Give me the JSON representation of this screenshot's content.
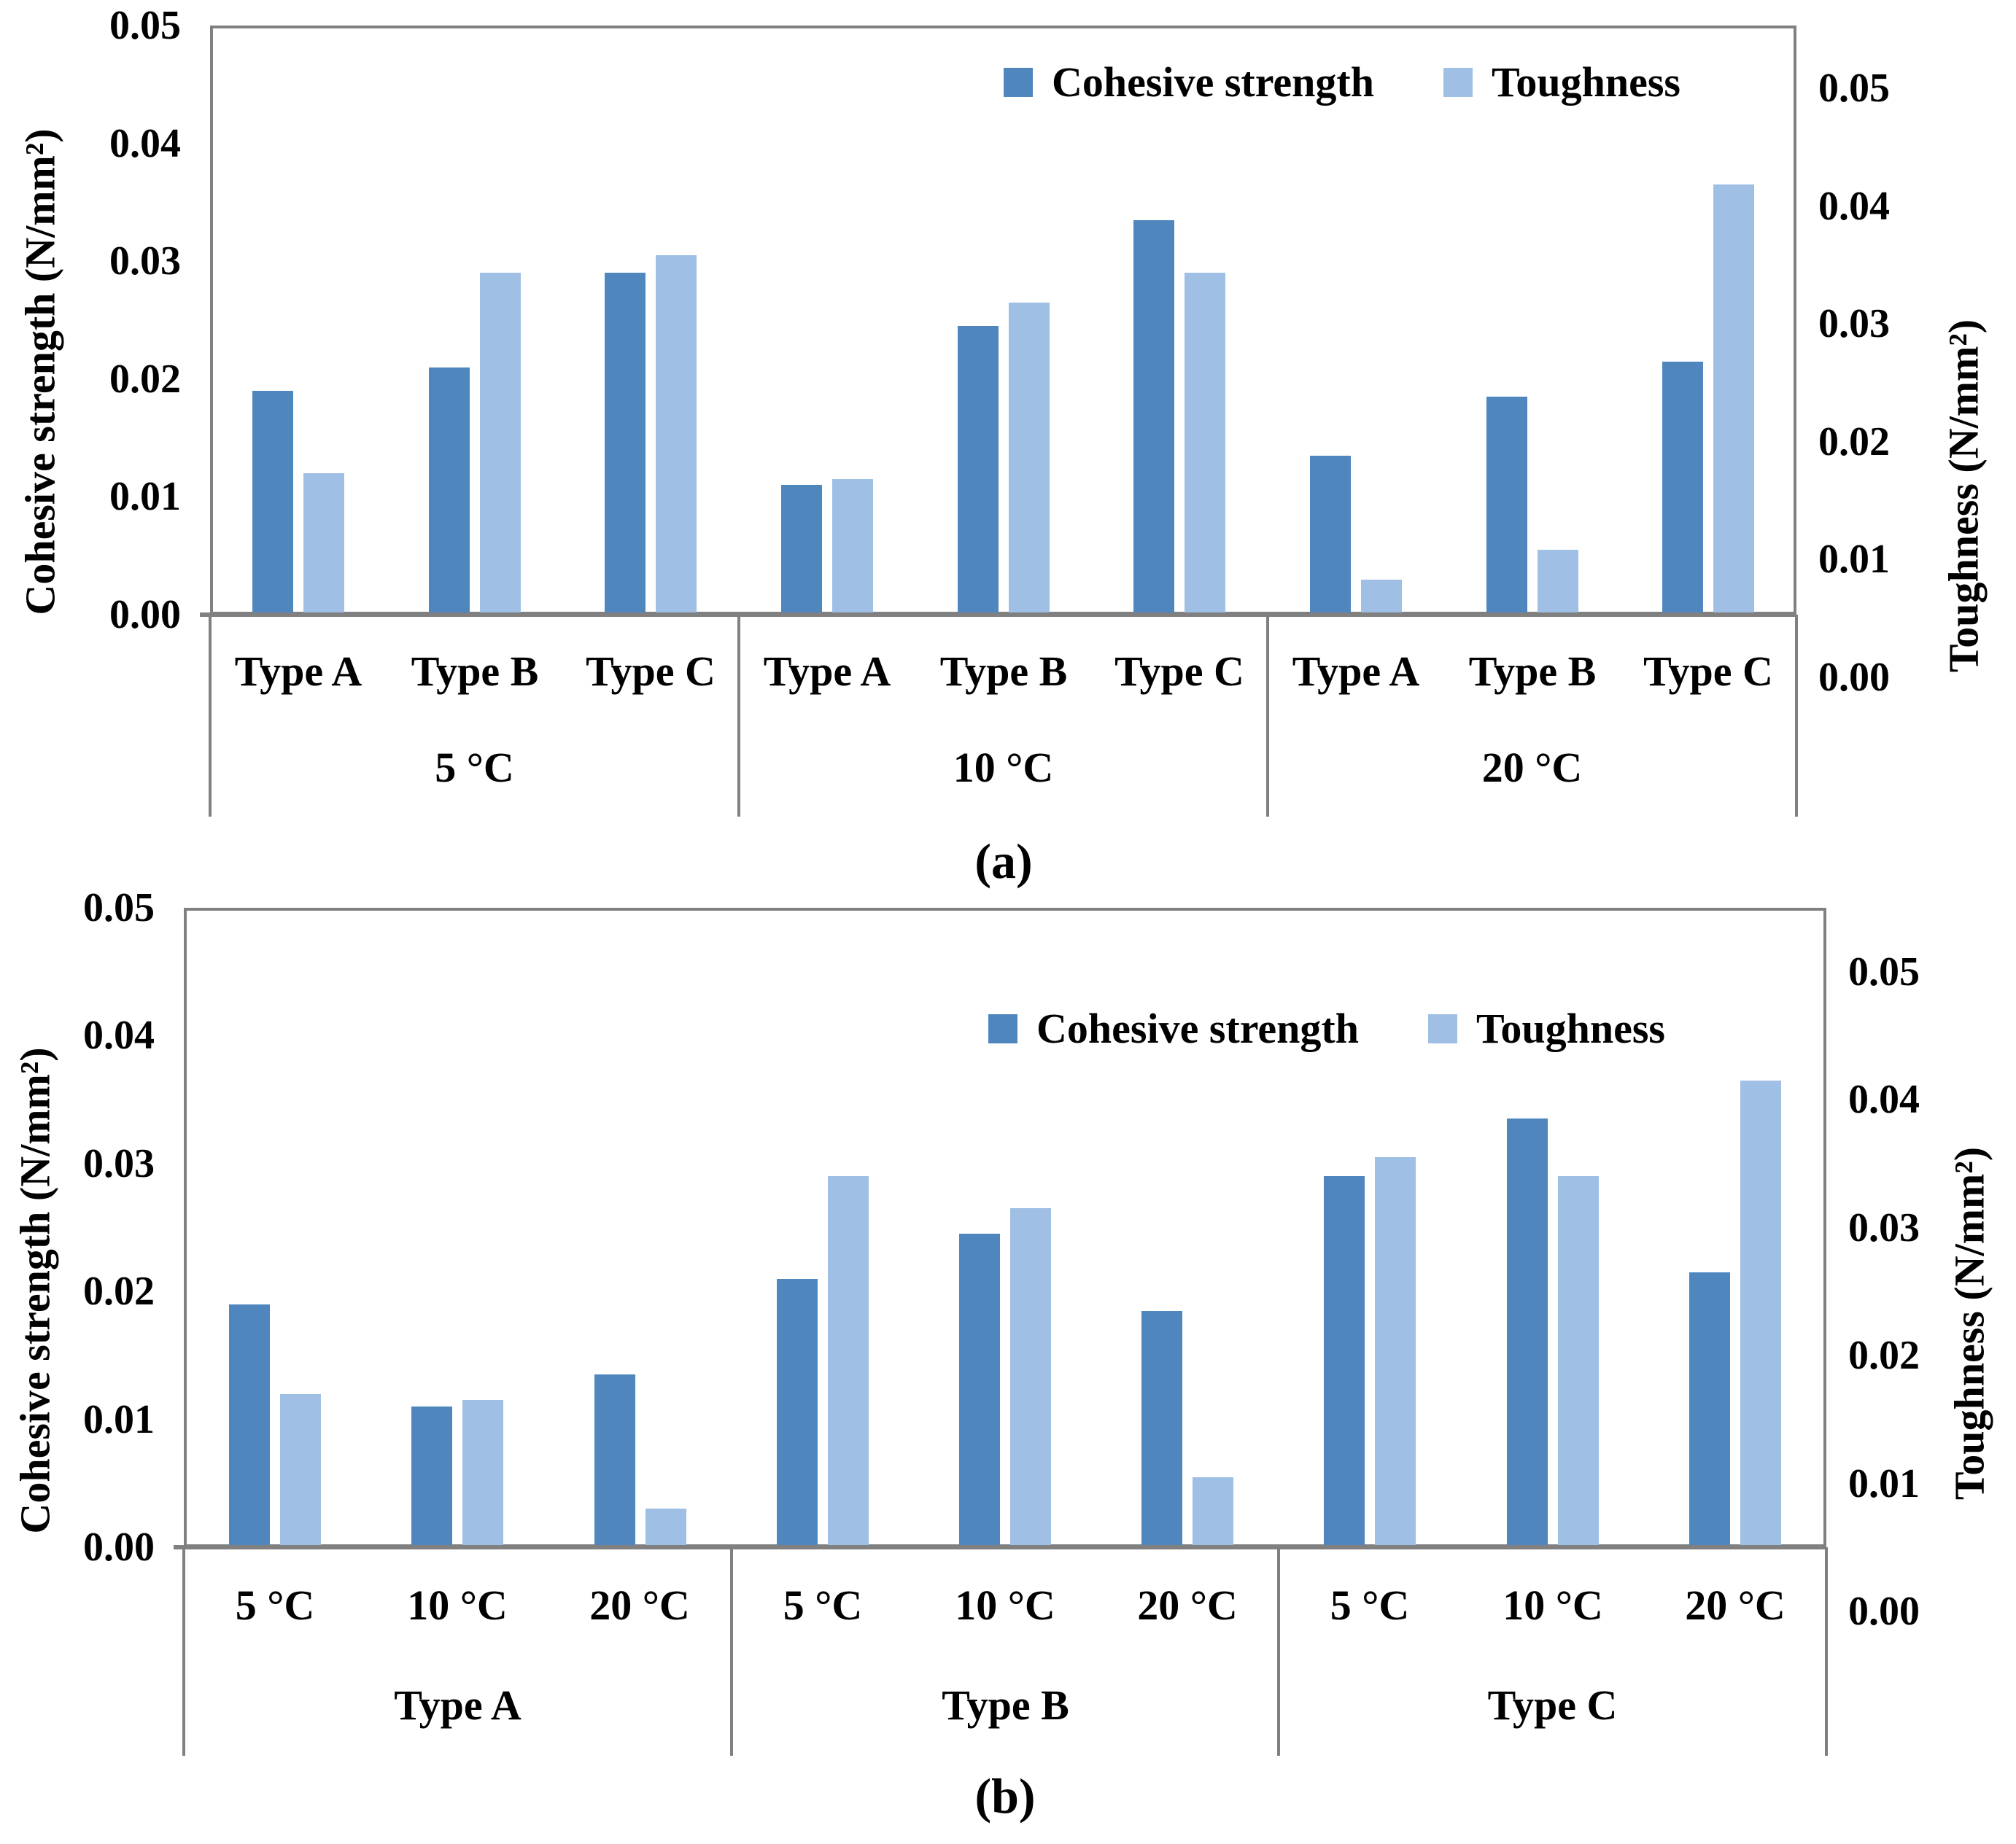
{
  "colors": {
    "cohesive_strength": "#4f86bd",
    "toughness": "#9fc0e4",
    "frame": "#808080",
    "text": "#000000"
  },
  "legend": {
    "cohesive_label": "Cohesive strength",
    "toughness_label": "Toughness"
  },
  "axis": {
    "left_title": "Cohesive strength (N/mm²)",
    "right_title": "Toughness (N/mm²)",
    "tick_labels": [
      "0.00",
      "0.01",
      "0.02",
      "0.03",
      "0.04",
      "0.05"
    ],
    "y_max": 0.05
  },
  "chart_data": [
    {
      "panel": "a",
      "type": "bar",
      "caption": "(a)",
      "grouped_by": "temperature",
      "ylim": [
        0,
        0.05
      ],
      "yticks": [
        "0.00",
        "0.01",
        "0.02",
        "0.03",
        "0.04",
        "0.05"
      ],
      "left_axis": "Cohesive strength (N/mm²)",
      "right_axis": "Toughness (N/mm²)",
      "legend_entries": [
        "Cohesive strength",
        "Toughness"
      ],
      "groups": [
        {
          "label": "5 °C",
          "items": [
            {
              "label": "Type A",
              "cohesive_strength": 0.019,
              "toughness": 0.012
            },
            {
              "label": "Type B",
              "cohesive_strength": 0.021,
              "toughness": 0.029
            },
            {
              "label": "Type C",
              "cohesive_strength": 0.029,
              "toughness": 0.0305
            }
          ]
        },
        {
          "label": "10 °C",
          "items": [
            {
              "label": "Type A",
              "cohesive_strength": 0.011,
              "toughness": 0.0115
            },
            {
              "label": "Type B",
              "cohesive_strength": 0.0245,
              "toughness": 0.0265
            },
            {
              "label": "Type C",
              "cohesive_strength": 0.0335,
              "toughness": 0.029
            }
          ]
        },
        {
          "label": "20 °C",
          "items": [
            {
              "label": "Type A",
              "cohesive_strength": 0.0135,
              "toughness": 0.003
            },
            {
              "label": "Type B",
              "cohesive_strength": 0.0185,
              "toughness": 0.0055
            },
            {
              "label": "Type C",
              "cohesive_strength": 0.0215,
              "toughness": 0.0365
            }
          ]
        }
      ]
    },
    {
      "panel": "b",
      "type": "bar",
      "caption": "(b)",
      "grouped_by": "type",
      "ylim": [
        0,
        0.05
      ],
      "yticks": [
        "0.00",
        "0.01",
        "0.02",
        "0.03",
        "0.04",
        "0.05"
      ],
      "left_axis": "Cohesive strength (N/mm²)",
      "right_axis": "Toughness (N/mm²)",
      "legend_entries": [
        "Cohesive strength",
        "Toughness"
      ],
      "groups": [
        {
          "label": "Type A",
          "items": [
            {
              "label": "5 °C",
              "cohesive_strength": 0.019,
              "toughness": 0.012
            },
            {
              "label": "10 °C",
              "cohesive_strength": 0.011,
              "toughness": 0.0115
            },
            {
              "label": "20 °C",
              "cohesive_strength": 0.0135,
              "toughness": 0.003
            }
          ]
        },
        {
          "label": "Type B",
          "items": [
            {
              "label": "5 °C",
              "cohesive_strength": 0.021,
              "toughness": 0.029
            },
            {
              "label": "10 °C",
              "cohesive_strength": 0.0245,
              "toughness": 0.0265
            },
            {
              "label": "20 °C",
              "cohesive_strength": 0.0185,
              "toughness": 0.0055
            }
          ]
        },
        {
          "label": "Type C",
          "items": [
            {
              "label": "5 °C",
              "cohesive_strength": 0.029,
              "toughness": 0.0305
            },
            {
              "label": "10 °C",
              "cohesive_strength": 0.0335,
              "toughness": 0.029
            },
            {
              "label": "20 °C",
              "cohesive_strength": 0.0215,
              "toughness": 0.0365
            }
          ]
        }
      ]
    }
  ]
}
